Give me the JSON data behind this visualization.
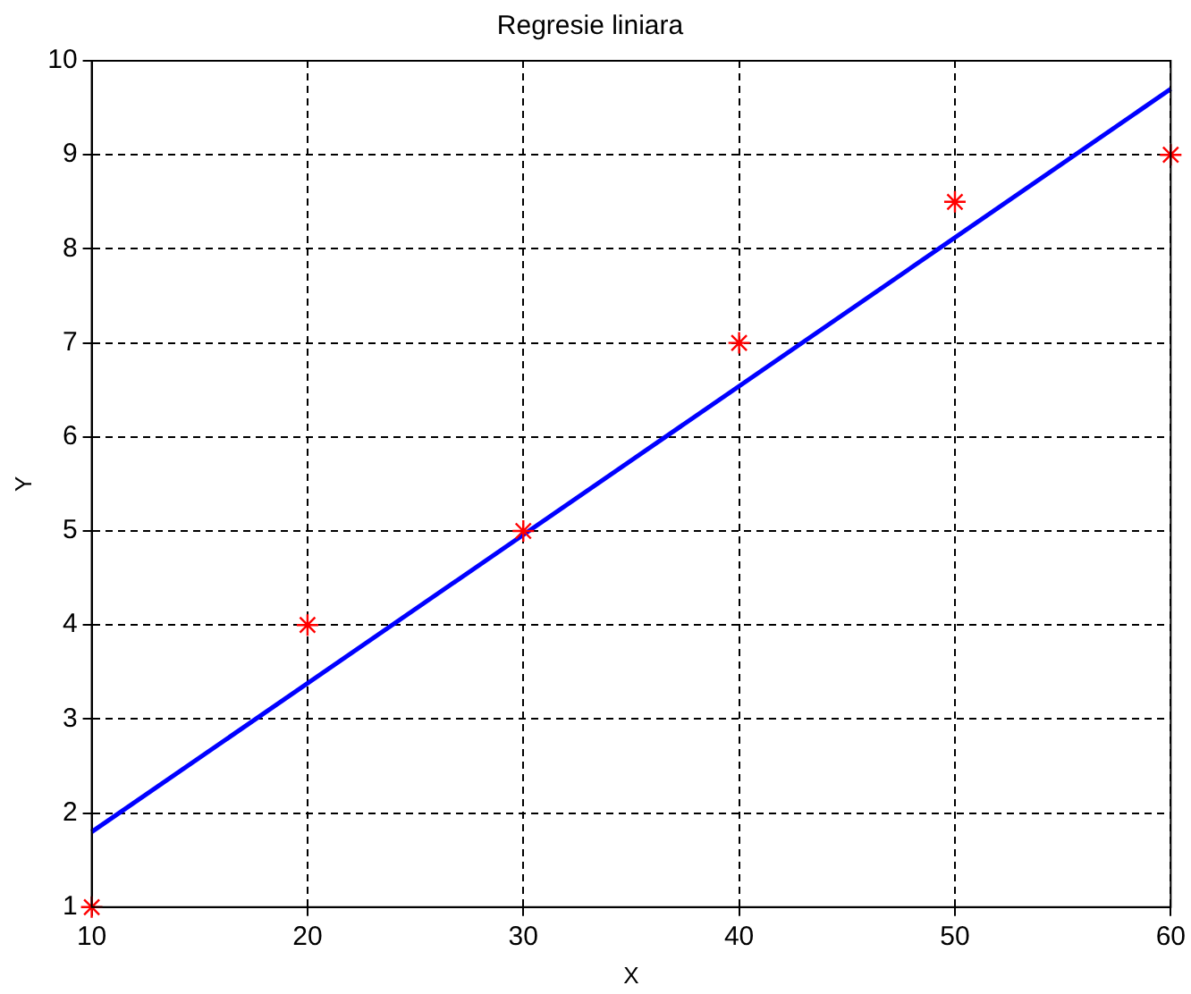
{
  "chart_data": {
    "type": "scatter",
    "title": "Regresie liniara",
    "xlabel": "X",
    "ylabel": "Y",
    "xlim": [
      10,
      60
    ],
    "xticks": [
      10,
      20,
      30,
      40,
      50,
      60
    ],
    "ylim": [
      1,
      10
    ],
    "yticks": [
      1,
      2,
      3,
      4,
      5,
      6,
      7,
      8,
      9,
      10
    ],
    "grid": true,
    "series": [
      {
        "type": "scatter",
        "color": "#ff0000",
        "marker": "cross",
        "x": [
          10,
          20,
          30,
          40,
          50,
          60
        ],
        "values": [
          1,
          4,
          5,
          7,
          8.5,
          9
        ]
      },
      {
        "type": "line",
        "color": "#0000ff",
        "marker": "none",
        "x": [
          10,
          60
        ],
        "values": [
          1.8,
          9.7
        ]
      }
    ]
  }
}
